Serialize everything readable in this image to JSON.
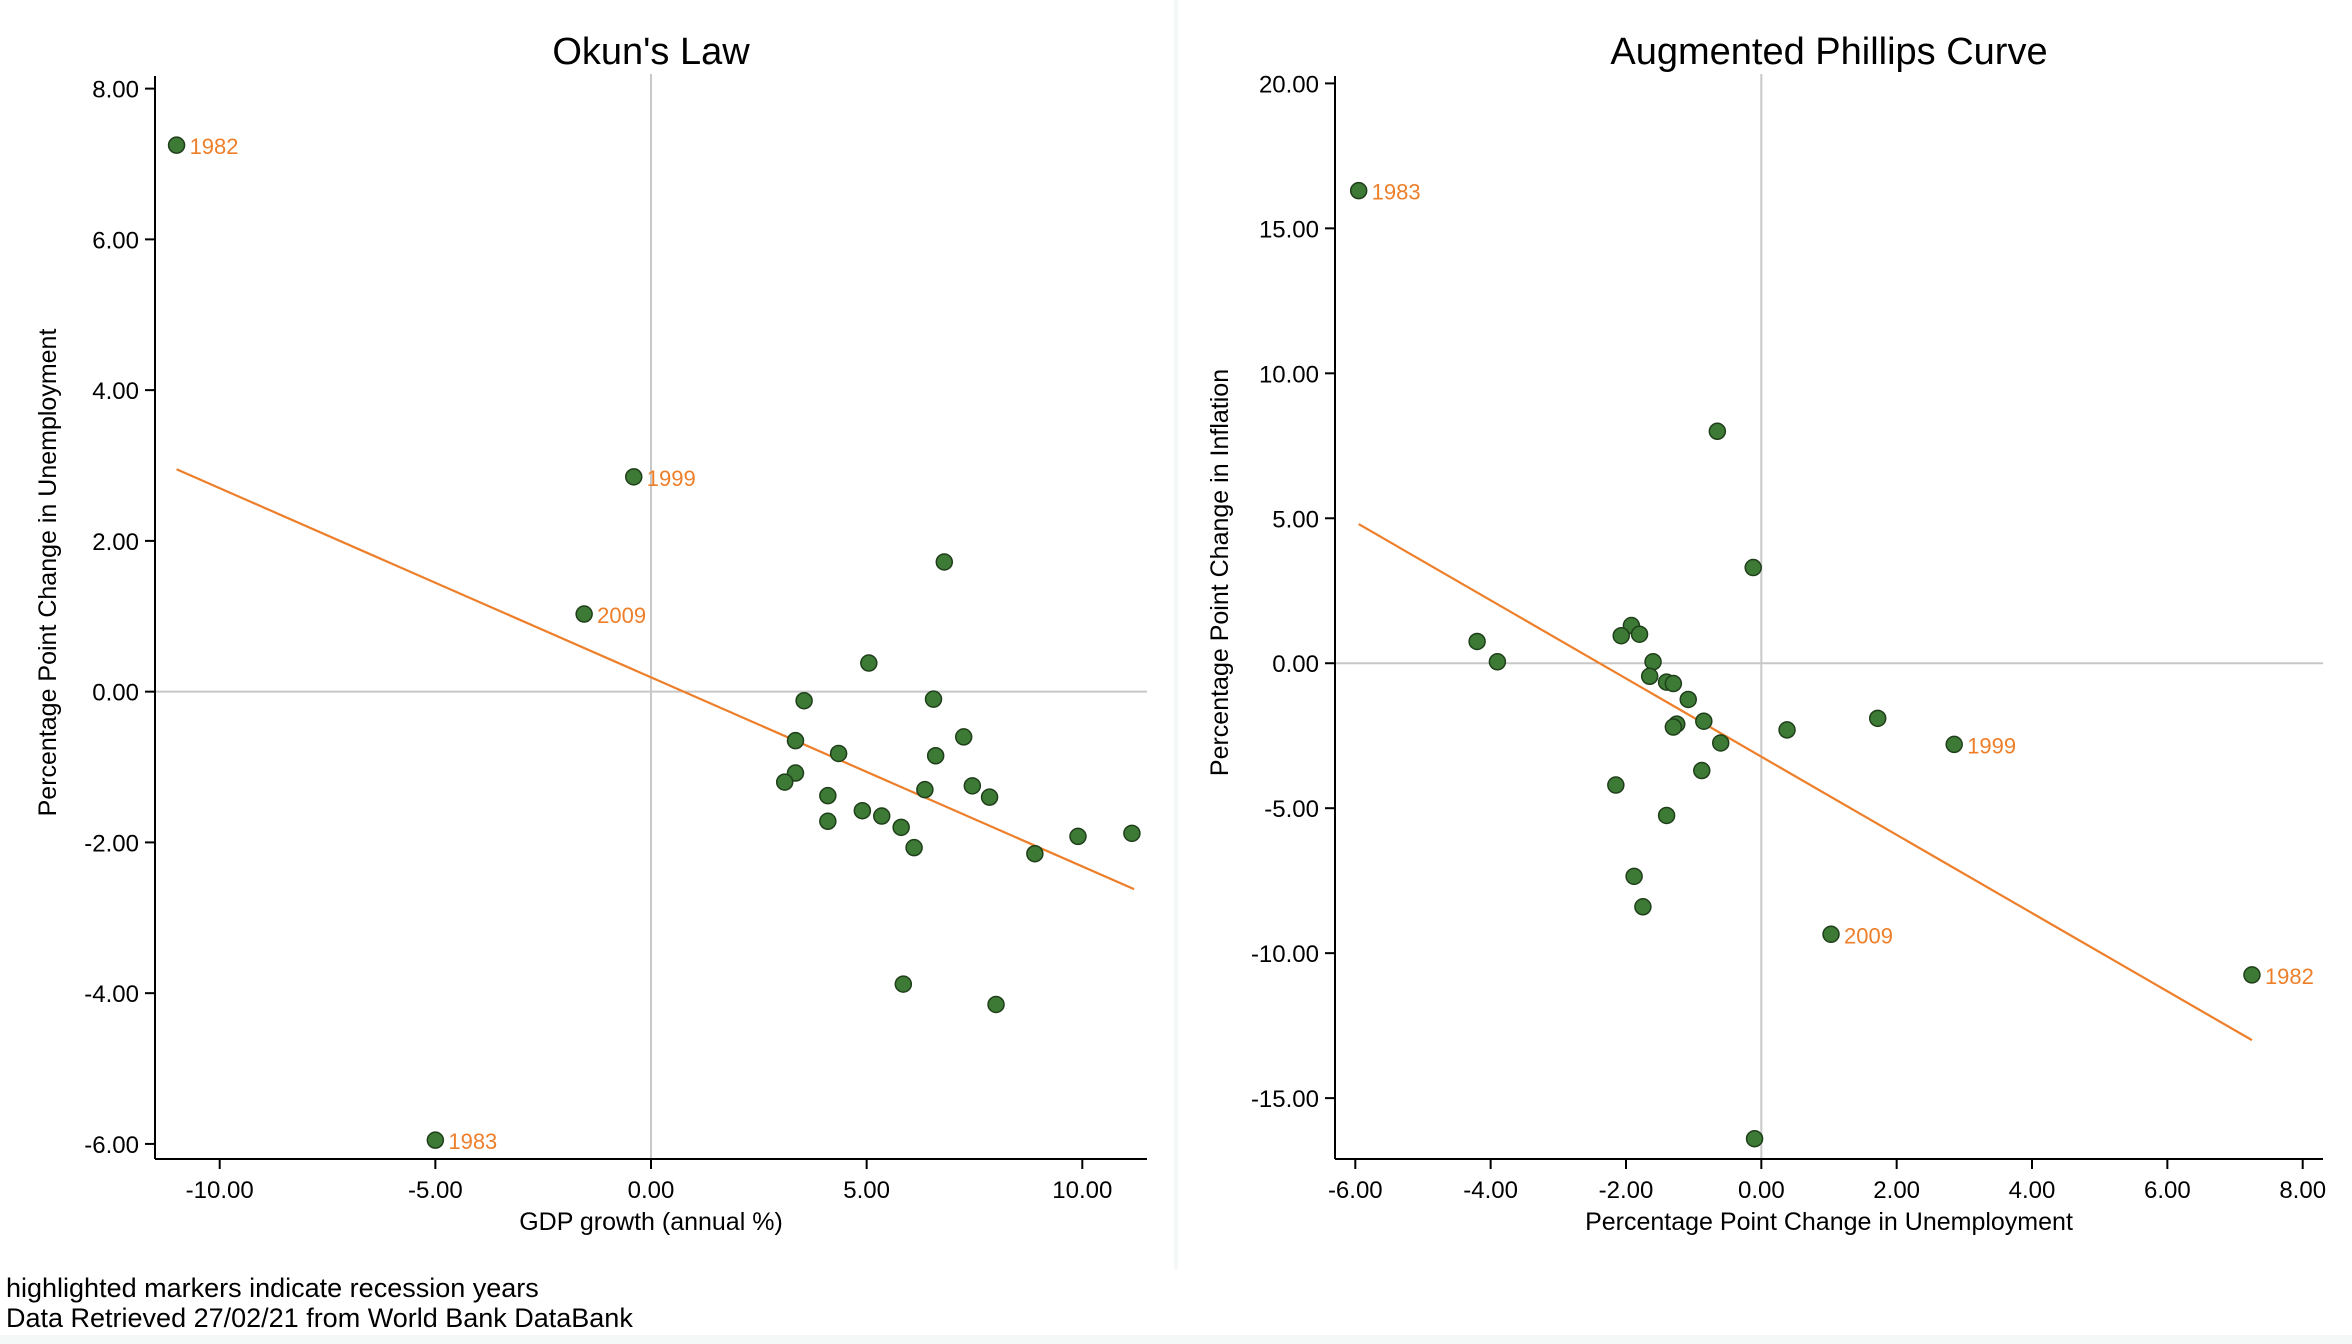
{
  "notes": {
    "line1": "highlighted markers indicate recession years",
    "line2": "Data Retrieved 27/02/21 from World Bank DataBank"
  },
  "colors": {
    "marker": "#3d7a35",
    "marker_edge": "#1f3f1a",
    "fit_line": "#ee7f2a",
    "label": "#ee7f2a",
    "zero_line": "#c8c8c8",
    "axis": "#000000"
  },
  "chart_data": [
    {
      "type": "scatter",
      "title": "Okun's Law",
      "xlabel": "GDP growth (annual %)",
      "ylabel": "Percentage Point Change in Unemployment",
      "xlim": [
        -11.5,
        11.5
      ],
      "ylim": [
        -6.2,
        8.3
      ],
      "xticks": [
        -10,
        -5,
        0,
        5,
        10
      ],
      "yticks": [
        -6,
        -4,
        -2,
        0,
        2,
        4,
        6,
        8
      ],
      "x_tick_labels": [
        "-10.00",
        "-5.00",
        "0.00",
        "5.00",
        "10.00"
      ],
      "y_tick_labels": [
        "-6.00",
        "-4.00",
        "-2.00",
        "0.00",
        "2.00",
        "4.00",
        "6.00",
        "8.00"
      ],
      "grid": false,
      "reference_lines": {
        "x": 0,
        "y": 0
      },
      "fit_line": {
        "x": [
          -11.0,
          11.2
        ],
        "y": [
          2.95,
          -2.62
        ]
      },
      "points": [
        {
          "x": -11.0,
          "y": 7.25,
          "label": "1982"
        },
        {
          "x": -5.0,
          "y": -5.95,
          "label": "1983"
        },
        {
          "x": -0.4,
          "y": 2.85,
          "label": "1999"
        },
        {
          "x": -1.55,
          "y": 1.03,
          "label": "2009"
        },
        {
          "x": 6.8,
          "y": 1.72
        },
        {
          "x": 5.05,
          "y": 0.38
        },
        {
          "x": 3.55,
          "y": -0.12
        },
        {
          "x": 6.55,
          "y": -0.1
        },
        {
          "x": 3.35,
          "y": -0.65
        },
        {
          "x": 7.25,
          "y": -0.6
        },
        {
          "x": 4.35,
          "y": -0.82
        },
        {
          "x": 6.6,
          "y": -0.85
        },
        {
          "x": 3.35,
          "y": -1.08
        },
        {
          "x": 3.1,
          "y": -1.2
        },
        {
          "x": 7.45,
          "y": -1.25
        },
        {
          "x": 6.35,
          "y": -1.3
        },
        {
          "x": 4.1,
          "y": -1.38
        },
        {
          "x": 7.85,
          "y": -1.4
        },
        {
          "x": 4.9,
          "y": -1.58
        },
        {
          "x": 5.35,
          "y": -1.65
        },
        {
          "x": 4.1,
          "y": -1.72
        },
        {
          "x": 5.8,
          "y": -1.8
        },
        {
          "x": 11.15,
          "y": -1.88
        },
        {
          "x": 9.9,
          "y": -1.92
        },
        {
          "x": 6.1,
          "y": -2.07
        },
        {
          "x": 8.9,
          "y": -2.15
        },
        {
          "x": 5.85,
          "y": -3.88
        },
        {
          "x": 8.0,
          "y": -4.15
        }
      ]
    },
    {
      "type": "scatter",
      "title": "Augmented Phillips Curve",
      "xlabel": "Percentage Point Change in Unemployment",
      "ylabel": "Percentage Point Change in Inflation",
      "xlim": [
        -6.3,
        8.3
      ],
      "ylim": [
        -17.1,
        20.6
      ],
      "xticks": [
        -6,
        -4,
        -2,
        0,
        2,
        4,
        6,
        8
      ],
      "yticks": [
        -15,
        -10,
        -5,
        0,
        5,
        10,
        15,
        20
      ],
      "x_tick_labels": [
        "-6.00",
        "-4.00",
        "-2.00",
        "0.00",
        "2.00",
        "4.00",
        "6.00",
        "8.00"
      ],
      "y_tick_labels": [
        "-15.00",
        "-10.00",
        "-5.00",
        "0.00",
        "5.00",
        "10.00",
        "15.00",
        "20.00"
      ],
      "grid": false,
      "reference_lines": {
        "x": 0,
        "y": 0
      },
      "fit_line": {
        "x": [
          -5.95,
          7.25
        ],
        "y": [
          4.8,
          -13.0
        ]
      },
      "points": [
        {
          "x": -5.95,
          "y": 16.3,
          "label": "1983"
        },
        {
          "x": 2.85,
          "y": -2.8,
          "label": "1999"
        },
        {
          "x": 1.03,
          "y": -9.35,
          "label": "2009"
        },
        {
          "x": 7.25,
          "y": -10.75,
          "label": "1982"
        },
        {
          "x": -0.65,
          "y": 8.0
        },
        {
          "x": -0.12,
          "y": 3.3
        },
        {
          "x": -4.2,
          "y": 0.75
        },
        {
          "x": -3.9,
          "y": 0.05
        },
        {
          "x": -1.92,
          "y": 1.3
        },
        {
          "x": -2.07,
          "y": 0.95
        },
        {
          "x": -1.8,
          "y": 1.0
        },
        {
          "x": -1.6,
          "y": 0.05
        },
        {
          "x": -1.65,
          "y": -0.45
        },
        {
          "x": -1.4,
          "y": -0.65
        },
        {
          "x": -1.3,
          "y": -0.7
        },
        {
          "x": -1.08,
          "y": -1.25
        },
        {
          "x": -0.85,
          "y": -2.0
        },
        {
          "x": -1.25,
          "y": -2.1
        },
        {
          "x": -1.3,
          "y": -2.2
        },
        {
          "x": -0.6,
          "y": -2.75
        },
        {
          "x": 0.38,
          "y": -2.3
        },
        {
          "x": 1.72,
          "y": -1.9
        },
        {
          "x": -0.88,
          "y": -3.7
        },
        {
          "x": -2.15,
          "y": -4.2
        },
        {
          "x": -1.4,
          "y": -5.25
        },
        {
          "x": -1.88,
          "y": -7.35
        },
        {
          "x": -1.75,
          "y": -8.4
        },
        {
          "x": -0.1,
          "y": -16.4
        }
      ]
    }
  ]
}
